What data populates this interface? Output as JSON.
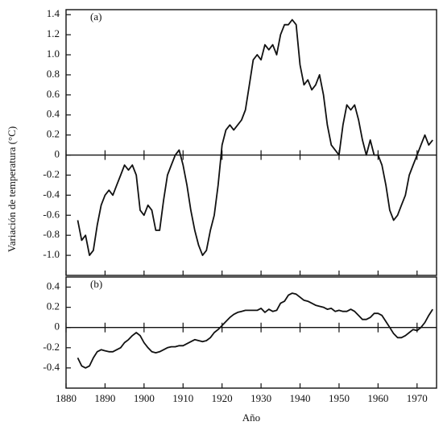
{
  "chart_data": [
    {
      "type": "line",
      "label": "(a)",
      "ylabel": "Variación de temperatura (°C)",
      "x": [
        1883,
        1884,
        1885,
        1886,
        1887,
        1888,
        1889,
        1890,
        1891,
        1892,
        1893,
        1894,
        1895,
        1896,
        1897,
        1898,
        1899,
        1900,
        1901,
        1902,
        1903,
        1904,
        1905,
        1906,
        1907,
        1908,
        1909,
        1910,
        1911,
        1912,
        1913,
        1914,
        1915,
        1916,
        1917,
        1918,
        1919,
        1920,
        1921,
        1922,
        1923,
        1924,
        1925,
        1926,
        1927,
        1928,
        1929,
        1930,
        1931,
        1932,
        1933,
        1934,
        1935,
        1936,
        1937,
        1938,
        1939,
        1940,
        1941,
        1942,
        1943,
        1944,
        1945,
        1946,
        1947,
        1948,
        1949,
        1950,
        1951,
        1952,
        1953,
        1954,
        1955,
        1956,
        1957,
        1958,
        1959,
        1960,
        1961,
        1962,
        1963,
        1964,
        1965,
        1966,
        1967,
        1968,
        1969,
        1970,
        1971,
        1972,
        1973,
        1974
      ],
      "values": [
        -0.65,
        -0.85,
        -0.8,
        -1.0,
        -0.95,
        -0.7,
        -0.5,
        -0.4,
        -0.35,
        -0.4,
        -0.3,
        -0.2,
        -0.1,
        -0.15,
        -0.1,
        -0.2,
        -0.55,
        -0.6,
        -0.5,
        -0.55,
        -0.75,
        -0.75,
        -0.45,
        -0.2,
        -0.1,
        0.0,
        0.05,
        -0.1,
        -0.3,
        -0.55,
        -0.75,
        -0.9,
        -1.0,
        -0.95,
        -0.75,
        -0.6,
        -0.3,
        0.1,
        0.25,
        0.3,
        0.25,
        0.3,
        0.35,
        0.45,
        0.7,
        0.95,
        1.0,
        0.95,
        1.1,
        1.05,
        1.1,
        1.0,
        1.2,
        1.3,
        1.3,
        1.35,
        1.3,
        0.9,
        0.7,
        0.75,
        0.65,
        0.7,
        0.8,
        0.6,
        0.3,
        0.1,
        0.05,
        0.0,
        0.3,
        0.5,
        0.45,
        0.5,
        0.35,
        0.15,
        0.0,
        0.15,
        0.0,
        0.0,
        -0.1,
        -0.3,
        -0.55,
        -0.65,
        -0.6,
        -0.5,
        -0.4,
        -0.2,
        -0.1,
        0.0,
        0.1,
        0.2,
        0.1,
        0.15
      ],
      "color": "#111111",
      "xlim": [
        1880,
        1975
      ],
      "xticks": [
        1880,
        1890,
        1900,
        1910,
        1920,
        1930,
        1940,
        1950,
        1960,
        1970
      ],
      "ylim": [
        -1.2,
        1.45
      ],
      "yticks": [
        1.4,
        1.2,
        {
          "value": 1,
          "label": "1.0"
        },
        0.8,
        0.6,
        0.4,
        0.2,
        0,
        -0.2,
        -0.4,
        -0.6,
        -0.8,
        {
          "value": -1,
          "label": "-1.0"
        }
      ]
    },
    {
      "type": "line",
      "label": "(b)",
      "xlabel": "Año",
      "x": [
        1883,
        1884,
        1885,
        1886,
        1887,
        1888,
        1889,
        1890,
        1891,
        1892,
        1893,
        1894,
        1895,
        1896,
        1897,
        1898,
        1899,
        1900,
        1901,
        1902,
        1903,
        1904,
        1905,
        1906,
        1907,
        1908,
        1909,
        1910,
        1911,
        1912,
        1913,
        1914,
        1915,
        1916,
        1917,
        1918,
        1919,
        1920,
        1921,
        1922,
        1923,
        1924,
        1925,
        1926,
        1927,
        1928,
        1929,
        1930,
        1931,
        1932,
        1933,
        1934,
        1935,
        1936,
        1937,
        1938,
        1939,
        1940,
        1941,
        1942,
        1943,
        1944,
        1945,
        1946,
        1947,
        1948,
        1949,
        1950,
        1951,
        1952,
        1953,
        1954,
        1955,
        1956,
        1957,
        1958,
        1959,
        1960,
        1961,
        1962,
        1963,
        1964,
        1965,
        1966,
        1967,
        1968,
        1969,
        1970,
        1971,
        1972,
        1973,
        1974
      ],
      "values": [
        -0.3,
        -0.38,
        -0.4,
        -0.38,
        -0.3,
        -0.24,
        -0.22,
        -0.23,
        -0.24,
        -0.24,
        -0.22,
        -0.2,
        -0.15,
        -0.12,
        -0.08,
        -0.05,
        -0.08,
        -0.15,
        -0.2,
        -0.24,
        -0.25,
        -0.24,
        -0.22,
        -0.2,
        -0.19,
        -0.19,
        -0.18,
        -0.18,
        -0.16,
        -0.14,
        -0.12,
        -0.13,
        -0.14,
        -0.13,
        -0.1,
        -0.05,
        -0.02,
        0.02,
        0.06,
        0.1,
        0.13,
        0.15,
        0.16,
        0.17,
        0.17,
        0.17,
        0.17,
        0.19,
        0.15,
        0.18,
        0.16,
        0.17,
        0.24,
        0.26,
        0.32,
        0.34,
        0.33,
        0.3,
        0.27,
        0.26,
        0.24,
        0.22,
        0.21,
        0.2,
        0.18,
        0.19,
        0.16,
        0.17,
        0.16,
        0.16,
        0.18,
        0.16,
        0.12,
        0.08,
        0.08,
        0.1,
        0.14,
        0.14,
        0.12,
        0.06,
        0.0,
        -0.06,
        -0.1,
        -0.1,
        -0.08,
        -0.05,
        -0.02,
        -0.03,
        0.0,
        0.05,
        0.12,
        0.18
      ],
      "color": "#111111",
      "xlim": [
        1880,
        1975
      ],
      "xticks": [
        1880,
        1890,
        1900,
        1910,
        1920,
        1930,
        1940,
        1950,
        1960,
        1970
      ],
      "ylim": [
        -0.6,
        0.5
      ],
      "yticks": [
        0.4,
        0.2,
        0,
        -0.2,
        -0.4
      ]
    }
  ]
}
